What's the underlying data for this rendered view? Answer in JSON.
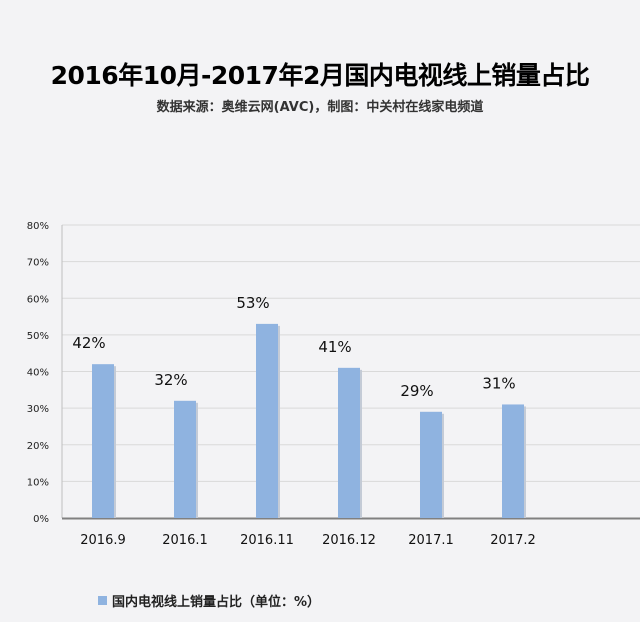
{
  "chart_title": "2016年10月-2017年2月国内电视线上销量占比",
  "chart_subtitle": "数据来源：奥维云网(AVC)，制图：中关村在线家电频道",
  "chart_data": {
    "type": "bar",
    "title": "2016年10月-2017年2月国内电视线上销量占比",
    "subtitle": "数据来源：奥维云网(AVC)，制图：中关村在线家电频道",
    "categories": [
      "2016.9",
      "2016.1",
      "2016.11",
      "2016.12",
      "2017.1",
      "2017.2"
    ],
    "values": [
      42,
      32,
      53,
      41,
      29,
      31
    ],
    "value_labels": [
      "42%",
      "32%",
      "53%",
      "41%",
      "29%",
      "31%"
    ],
    "series": [
      {
        "name": "国内电视线上销量占比（单位：%）",
        "values": [
          42,
          32,
          53,
          41,
          29,
          31
        ]
      }
    ],
    "y_ticks": [
      "0%",
      "10%",
      "20%",
      "30%",
      "40%",
      "50%",
      "60%",
      "70%",
      "80%"
    ],
    "ylim": [
      0,
      80
    ],
    "xlabel": "",
    "ylabel": "",
    "grid": true,
    "legend_position": "bottom-left",
    "bar_color": "#8fb3e0"
  }
}
